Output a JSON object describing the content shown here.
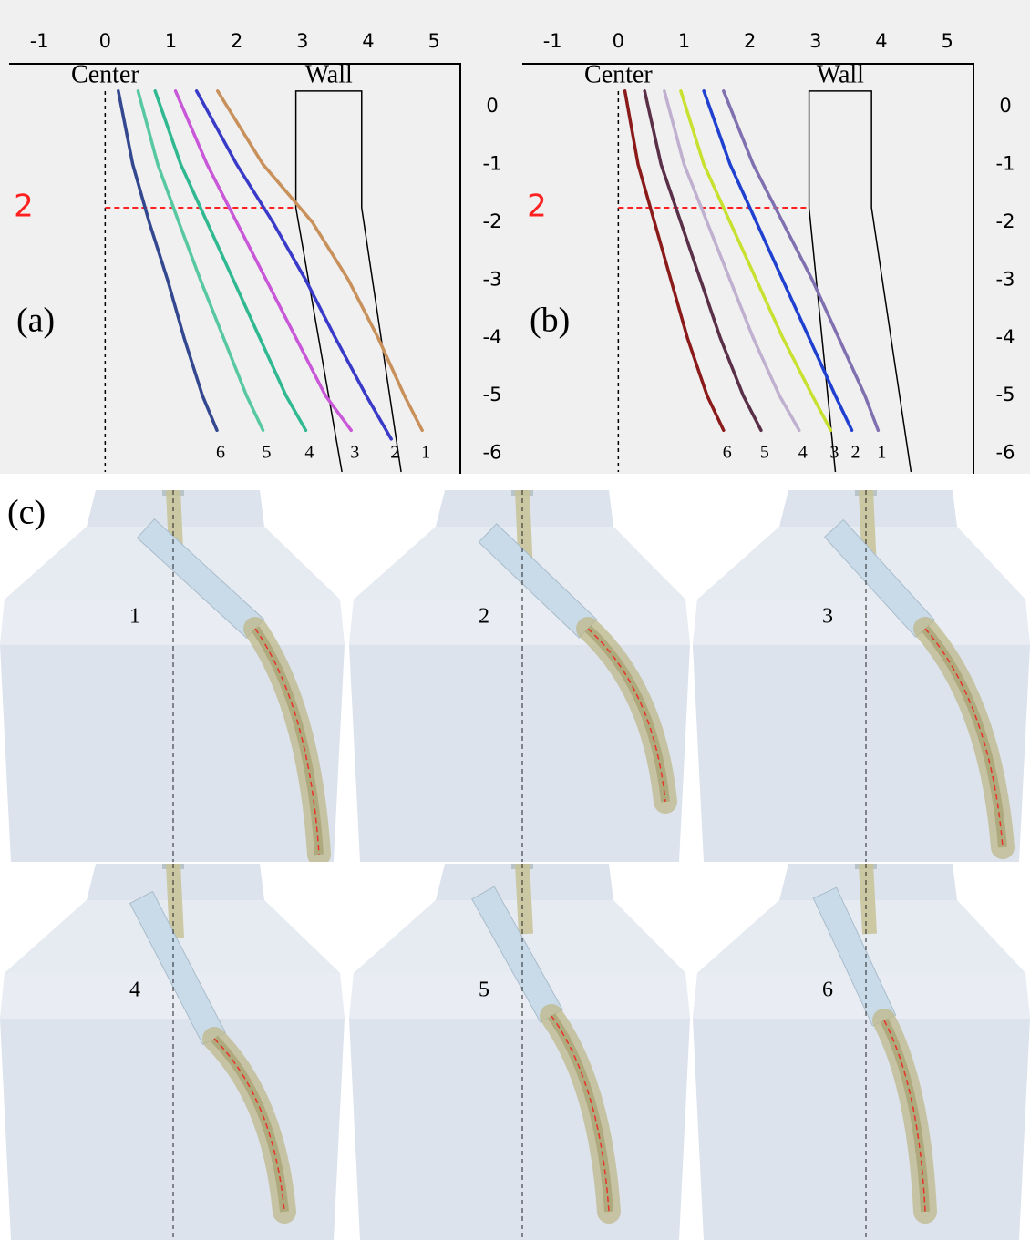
{
  "chart_data": [
    {
      "type": "line",
      "panel_label": "(a)",
      "center_label": "Center",
      "wall_label": "Wall",
      "xlim": [
        -1.46,
        5.4
      ],
      "ylim": [
        -6.32,
        0.74
      ],
      "xticks": [
        -1,
        0,
        1,
        2,
        3,
        4,
        5
      ],
      "yticks": [
        0,
        -1,
        -2,
        -3,
        -4,
        -5,
        -6
      ],
      "reference_line": {
        "y": -1.75,
        "label": "2",
        "color": "#ff2020"
      },
      "wall": {
        "x": [
          3.6,
          2.9,
          2.9,
          3.9,
          3.9,
          4.5
        ],
        "y": [
          -6.32,
          -1.75,
          0.27,
          0.27,
          -1.75,
          -6.32
        ]
      },
      "series": [
        {
          "name": "1",
          "color": "#c8905a",
          "x": [
            1.71,
            2.4,
            3.15,
            3.7,
            4.15,
            4.55,
            4.82
          ],
          "values": [
            0.27,
            -1,
            -2,
            -3,
            -4,
            -5,
            -5.6
          ]
        },
        {
          "name": "2",
          "color": "#3a3ac8",
          "x": [
            1.39,
            2.0,
            2.55,
            3.05,
            3.5,
            3.97,
            4.35
          ],
          "values": [
            0.27,
            -1,
            -2,
            -3,
            -4,
            -5,
            -5.75
          ]
        },
        {
          "name": "3",
          "color": "#c858d8",
          "x": [
            1.07,
            1.55,
            2.0,
            2.45,
            2.9,
            3.35,
            3.74
          ],
          "values": [
            0.27,
            -1,
            -2,
            -3,
            -4,
            -5,
            -5.6
          ]
        },
        {
          "name": "4",
          "color": "#30b890",
          "x": [
            0.76,
            1.15,
            1.55,
            1.95,
            2.35,
            2.75,
            3.05
          ],
          "values": [
            0.27,
            -1,
            -2,
            -3,
            -4,
            -5,
            -5.6
          ]
        },
        {
          "name": "5",
          "color": "#58c8a0",
          "x": [
            0.5,
            0.8,
            1.12,
            1.45,
            1.8,
            2.15,
            2.4
          ],
          "values": [
            0.27,
            -1,
            -2,
            -3,
            -4,
            -5,
            -5.6
          ]
        },
        {
          "name": "6",
          "color": "#344890",
          "x": [
            0.2,
            0.42,
            0.67,
            0.95,
            1.2,
            1.48,
            1.7
          ],
          "values": [
            0.27,
            -1,
            -2,
            -3,
            -4,
            -5,
            -5.6
          ]
        }
      ]
    },
    {
      "type": "line",
      "panel_label": "(b)",
      "center_label": "Center",
      "wall_label": "Wall",
      "xlim": [
        -1.46,
        5.4
      ],
      "ylim": [
        -6.32,
        0.74
      ],
      "xticks": [
        -1,
        0,
        1,
        2,
        3,
        4,
        5
      ],
      "yticks": [
        0,
        -1,
        -2,
        -3,
        -4,
        -5,
        -6
      ],
      "reference_line": {
        "y": -1.75,
        "label": "2",
        "color": "#ff2020"
      },
      "wall": {
        "x": [
          3.3,
          2.9,
          2.9,
          3.85,
          3.85,
          4.45
        ],
        "y": [
          -6.32,
          -1.75,
          0.27,
          0.27,
          -1.75,
          -6.32
        ]
      },
      "series": [
        {
          "name": "1",
          "color": "#8070b0",
          "x": [
            1.6,
            2.05,
            2.5,
            2.95,
            3.35,
            3.75,
            3.95
          ],
          "values": [
            0.27,
            -1,
            -2,
            -3,
            -4,
            -5,
            -5.6
          ]
        },
        {
          "name": "2",
          "color": "#2040d0",
          "x": [
            1.3,
            1.7,
            2.1,
            2.5,
            2.9,
            3.3,
            3.55
          ],
          "values": [
            0.27,
            -1,
            -2,
            -3,
            -4,
            -5,
            -5.6
          ]
        },
        {
          "name": "3",
          "color": "#c8e030",
          "x": [
            0.95,
            1.3,
            1.7,
            2.1,
            2.5,
            2.95,
            3.23
          ],
          "values": [
            0.27,
            -1,
            -2,
            -3,
            -4,
            -5,
            -5.6
          ]
        },
        {
          "name": "4",
          "color": "#c0b0d0",
          "x": [
            0.7,
            1.0,
            1.35,
            1.7,
            2.05,
            2.45,
            2.75
          ],
          "values": [
            0.27,
            -1,
            -2,
            -3,
            -4,
            -5,
            -5.6
          ]
        },
        {
          "name": "5",
          "color": "#5a3048",
          "x": [
            0.4,
            0.65,
            0.95,
            1.25,
            1.55,
            1.9,
            2.17
          ],
          "values": [
            0.27,
            -1,
            -2,
            -3,
            -4,
            -5,
            -5.6
          ]
        },
        {
          "name": "6",
          "color": "#8b1a1a",
          "x": [
            0.1,
            0.3,
            0.55,
            0.8,
            1.05,
            1.35,
            1.6
          ],
          "values": [
            0.27,
            -1,
            -2,
            -3,
            -4,
            -5,
            -5.6
          ]
        }
      ]
    }
  ],
  "panel_c": {
    "label": "(c)",
    "images": [
      {
        "label": "1"
      },
      {
        "label": "2"
      },
      {
        "label": "3"
      },
      {
        "label": "4"
      },
      {
        "label": "5"
      },
      {
        "label": "6"
      }
    ]
  }
}
